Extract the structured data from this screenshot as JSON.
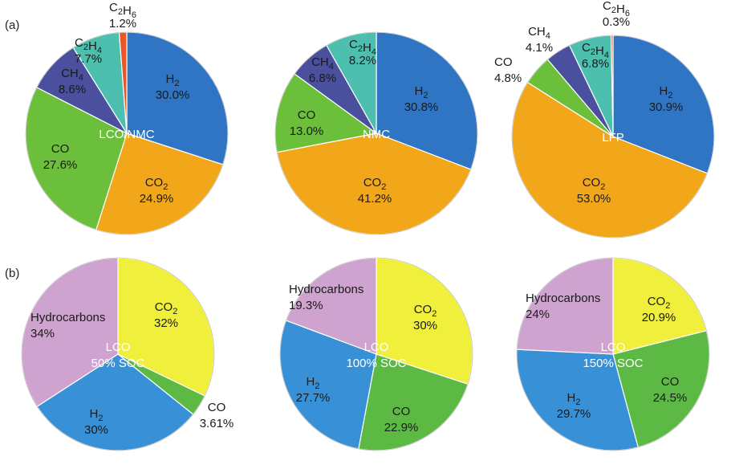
{
  "panels": [
    {
      "label": "(a)"
    },
    {
      "label": "(b)"
    }
  ],
  "chart_data": [
    {
      "type": "pie",
      "panel": "(a)",
      "title": "",
      "center_label": [
        "LCO/NMC"
      ],
      "slices": [
        {
          "name": "H₂",
          "value": 30.0,
          "text": "30.0%",
          "color": "#2f75c4"
        },
        {
          "name": "CO₂",
          "value": 24.9,
          "text": "24.9%",
          "color": "#f2a71b"
        },
        {
          "name": "CO",
          "value": 27.6,
          "text": "27.6%",
          "color": "#6bbf3a"
        },
        {
          "name": "CH₄",
          "value": 8.6,
          "text": "8.6%",
          "color": "#4a4f9e"
        },
        {
          "name": "C₂H₄",
          "value": 7.7,
          "text": "7.7%",
          "color": "#4dbfae"
        },
        {
          "name": "C₂H₆",
          "value": 1.2,
          "text": "1.2%",
          "color": "#e8572a"
        }
      ]
    },
    {
      "type": "pie",
      "panel": "(a)",
      "title": "",
      "center_label": [
        "NMC"
      ],
      "slices": [
        {
          "name": "H₂",
          "value": 30.8,
          "text": "30.8%",
          "color": "#2f75c4"
        },
        {
          "name": "CO₂",
          "value": 41.2,
          "text": "41.2%",
          "color": "#f2a71b"
        },
        {
          "name": "CO",
          "value": 13.0,
          "text": "13.0%",
          "color": "#6bbf3a"
        },
        {
          "name": "CH₄",
          "value": 6.8,
          "text": "6.8%",
          "color": "#4a4f9e"
        },
        {
          "name": "C₂H₄",
          "value": 8.2,
          "text": "8.2%",
          "color": "#4dbfae"
        }
      ]
    },
    {
      "type": "pie",
      "panel": "(a)",
      "title": "",
      "center_label": [
        "LFP"
      ],
      "slices": [
        {
          "name": "H₂",
          "value": 30.9,
          "text": "30.9%",
          "color": "#2f75c4"
        },
        {
          "name": "CO₂",
          "value": 53.0,
          "text": "53.0%",
          "color": "#f2a71b"
        },
        {
          "name": "CO",
          "value": 4.8,
          "text": "4.8%",
          "color": "#6bbf3a"
        },
        {
          "name": "CH₄",
          "value": 4.1,
          "text": "4.1%",
          "color": "#4a4f9e"
        },
        {
          "name": "C₂H₄",
          "value": 6.8,
          "text": "6.8%",
          "color": "#4dbfae"
        },
        {
          "name": "C₂H₆",
          "value": 0.3,
          "text": "0.3%",
          "color": "#e8572a"
        }
      ]
    },
    {
      "type": "pie",
      "panel": "(b)",
      "title": "",
      "center_label": [
        "LCO",
        "50% SOC"
      ],
      "slices": [
        {
          "name": "CO₂",
          "value": 32,
          "text": "32%",
          "color": "#f0ef3c"
        },
        {
          "name": "CO",
          "value": 3.61,
          "text": "3.61%",
          "color": "#5cba44"
        },
        {
          "name": "H₂",
          "value": 30,
          "text": "30%",
          "color": "#3891d6"
        },
        {
          "name": "Hydrocarbons",
          "value": 34,
          "text": "34%",
          "color": "#cfa3cf"
        }
      ]
    },
    {
      "type": "pie",
      "panel": "(b)",
      "title": "",
      "center_label": [
        "LCO",
        "100% SOC"
      ],
      "slices": [
        {
          "name": "CO₂",
          "value": 30,
          "text": "30%",
          "color": "#f0ef3c"
        },
        {
          "name": "CO",
          "value": 22.9,
          "text": "22.9%",
          "color": "#5cba44"
        },
        {
          "name": "H₂",
          "value": 27.7,
          "text": "27.7%",
          "color": "#3891d6"
        },
        {
          "name": "Hydrocarbons",
          "value": 19.3,
          "text": "19.3%",
          "color": "#cfa3cf"
        }
      ]
    },
    {
      "type": "pie",
      "panel": "(b)",
      "title": "",
      "center_label": [
        "LCO",
        "150% SOC"
      ],
      "slices": [
        {
          "name": "CO₂",
          "value": 20.9,
          "text": "20.9%",
          "color": "#f0ef3c"
        },
        {
          "name": "CO",
          "value": 24.5,
          "text": "24.5%",
          "color": "#5cba44"
        },
        {
          "name": "H₂",
          "value": 29.7,
          "text": "29.7%",
          "color": "#3891d6"
        },
        {
          "name": "Hydrocarbons",
          "value": 24,
          "text": "24%",
          "color": "#cfa3cf"
        }
      ]
    }
  ]
}
